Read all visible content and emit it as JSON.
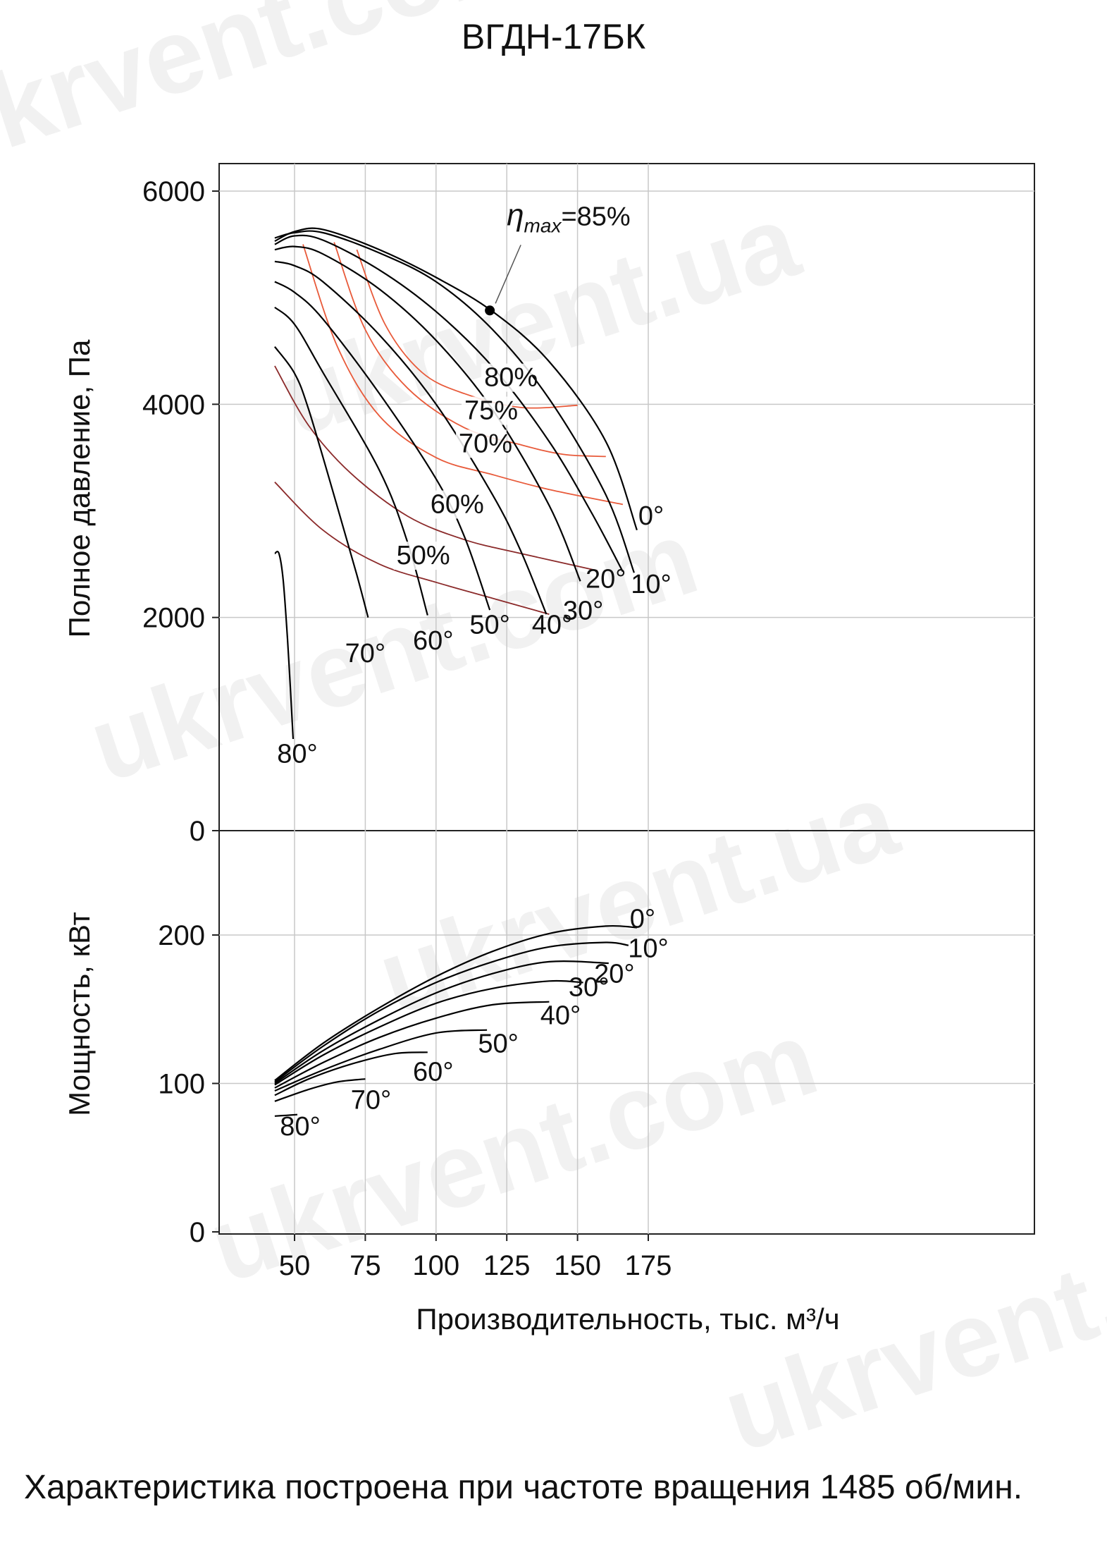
{
  "title": "ВГДН-17БК",
  "footnote": "Характеристика построена при частоте вращения 1485 об/мин.",
  "watermark": "ukrvent.com",
  "watermark_alt": "ukrvent.ua",
  "colors": {
    "curve": "#000000",
    "efficiency_low": "#8b2a2a",
    "efficiency_high": "#e85a3a",
    "grid": "#c8c8c8"
  },
  "chart_data": [
    {
      "type": "line",
      "panel": "pressure",
      "ylabel": "Полное давление, Па",
      "xlim": [
        37,
        181
      ],
      "ylim": [
        0,
        6300
      ],
      "yticks": [
        0,
        2000,
        4000,
        6000
      ],
      "ytick_labels": [
        "0",
        "2000",
        "4000",
        "6000"
      ],
      "xgrid": [
        50,
        75,
        100,
        125,
        150,
        175
      ],
      "series": [
        {
          "name": "0°",
          "label_xy": [
            176,
            2870
          ],
          "x": [
            43,
            50,
            60,
            80,
            100,
            120,
            140,
            160,
            171
          ],
          "y": [
            5530,
            5620,
            5640,
            5450,
            5190,
            4870,
            4400,
            3650,
            2820
          ]
        },
        {
          "name": "10°",
          "label_xy": [
            176,
            2230
          ],
          "x": [
            43,
            50,
            60,
            80,
            100,
            120,
            140,
            160,
            170
          ],
          "y": [
            5560,
            5610,
            5610,
            5420,
            5150,
            4700,
            4050,
            3150,
            2420
          ]
        },
        {
          "name": "20°",
          "label_xy": [
            160,
            2280
          ],
          "x": [
            43,
            50,
            60,
            80,
            100,
            120,
            140,
            155,
            166
          ],
          "y": [
            5500,
            5580,
            5540,
            5260,
            4870,
            4350,
            3650,
            2980,
            2430
          ]
        },
        {
          "name": "30°",
          "label_xy": [
            152,
            1980
          ],
          "x": [
            43,
            50,
            60,
            80,
            100,
            120,
            140,
            151
          ],
          "y": [
            5450,
            5480,
            5410,
            5080,
            4600,
            3950,
            3050,
            2340
          ]
        },
        {
          "name": "40°",
          "label_xy": [
            141,
            1850
          ],
          "x": [
            43,
            50,
            60,
            80,
            100,
            120,
            130,
            139
          ],
          "y": [
            5340,
            5300,
            5150,
            4650,
            4000,
            3150,
            2620,
            2030
          ]
        },
        {
          "name": "50°",
          "label_xy": [
            119,
            1850
          ],
          "x": [
            43,
            50,
            60,
            80,
            100,
            110,
            119
          ],
          "y": [
            5150,
            5050,
            4800,
            4100,
            3300,
            2760,
            2070
          ]
        },
        {
          "name": "60°",
          "label_xy": [
            99,
            1700
          ],
          "x": [
            43,
            50,
            60,
            80,
            90,
            97
          ],
          "y": [
            4910,
            4750,
            4300,
            3380,
            2700,
            2020
          ]
        },
        {
          "name": "70°",
          "label_xy": [
            75,
            1580
          ],
          "x": [
            43,
            50,
            55,
            65,
            72,
            76
          ],
          "y": [
            4540,
            4290,
            3950,
            3050,
            2400,
            2000
          ]
        },
        {
          "name": "80°",
          "label_xy": [
            51,
            640
          ],
          "x": [
            43,
            44.5,
            46,
            47.5,
            48.5,
            49.5
          ],
          "y": [
            2600,
            2600,
            2350,
            1800,
            1350,
            860
          ]
        }
      ],
      "efficiency_curves": [
        {
          "name": "50%",
          "label_xy": [
            86,
            2500
          ],
          "x": [
            43,
            60,
            80,
            100,
            120,
            140
          ],
          "y": [
            3270,
            2820,
            2500,
            2330,
            2180,
            2030
          ]
        },
        {
          "name": "60%",
          "label_xy": [
            98,
            2980
          ],
          "x": [
            43,
            55,
            70,
            90,
            110,
            130,
            157
          ],
          "y": [
            4360,
            3800,
            3350,
            2950,
            2730,
            2600,
            2440
          ]
        },
        {
          "name": "70%",
          "label_xy": [
            108,
            3550
          ],
          "x": [
            53,
            65,
            80,
            100,
            120,
            140,
            166
          ],
          "y": [
            5500,
            4550,
            3890,
            3500,
            3340,
            3200,
            3060
          ]
        },
        {
          "name": "75%",
          "label_xy": [
            110,
            3860
          ],
          "x": [
            64,
            75,
            90,
            110,
            130,
            145,
            160
          ],
          "y": [
            5520,
            4700,
            4150,
            3780,
            3620,
            3530,
            3510
          ]
        },
        {
          "name": "80%",
          "label_xy": [
            117,
            4170
          ],
          "x": [
            72,
            82,
            95,
            110,
            130,
            150
          ],
          "y": [
            5450,
            4750,
            4300,
            4100,
            3970,
            3990
          ]
        }
      ],
      "eta_max": {
        "label_symbol": "η",
        "label_sub": "max",
        "label": "=85%",
        "point": [
          119,
          4880
        ],
        "label_xy": [
          120,
          5680
        ]
      }
    },
    {
      "type": "line",
      "panel": "power",
      "ylabel": "Мощность, кВт",
      "xlabel": "Производительность, тыс. м³/ч",
      "xlim": [
        37,
        181
      ],
      "ylim": [
        0,
        262
      ],
      "yticks": [
        0,
        100,
        200
      ],
      "ytick_labels": [
        "0",
        "100",
        "200"
      ],
      "xticks": [
        50,
        75,
        100,
        125,
        150,
        175
      ],
      "xtick_labels": [
        "50",
        "75",
        "100",
        "125",
        "150",
        "175"
      ],
      "series": [
        {
          "name": "0°",
          "label_xy": [
            173,
            205
          ],
          "x": [
            43,
            60,
            80,
            100,
            120,
            140,
            160,
            171
          ],
          "y": [
            102,
            127,
            151,
            172,
            189,
            201,
            206,
            205
          ]
        },
        {
          "name": "10°",
          "label_xy": [
            175,
            185
          ],
          "x": [
            43,
            60,
            80,
            100,
            120,
            140,
            160,
            168
          ],
          "y": [
            101,
            125,
            149,
            168,
            182,
            192,
            195,
            193
          ]
        },
        {
          "name": "20°",
          "label_xy": [
            163,
            168
          ],
          "x": [
            43,
            60,
            80,
            100,
            120,
            140,
            161
          ],
          "y": [
            100,
            122,
            143,
            161,
            174,
            182,
            181
          ]
        },
        {
          "name": "30°",
          "label_xy": [
            154,
            159
          ],
          "x": [
            43,
            60,
            80,
            100,
            120,
            140,
            152
          ],
          "y": [
            99,
            119,
            138,
            154,
            164,
            169,
            168
          ]
        },
        {
          "name": "40°",
          "label_xy": [
            144,
            140
          ],
          "x": [
            43,
            60,
            80,
            100,
            120,
            140
          ],
          "y": [
            97,
            114,
            131,
            144,
            153,
            155
          ]
        },
        {
          "name": "50°",
          "label_xy": [
            122,
            121
          ],
          "x": [
            43,
            60,
            80,
            100,
            118
          ],
          "y": [
            95,
            109,
            123,
            134,
            136
          ]
        },
        {
          "name": "60°",
          "label_xy": [
            99,
            102
          ],
          "x": [
            43,
            55,
            70,
            85,
            97
          ],
          "y": [
            92,
            103,
            113,
            120,
            121
          ]
        },
        {
          "name": "70°",
          "label_xy": [
            77,
            83
          ],
          "x": [
            43,
            55,
            65,
            75
          ],
          "y": [
            88,
            96,
            101,
            103
          ]
        },
        {
          "name": "80°",
          "label_xy": [
            52,
            65
          ],
          "x": [
            43,
            47,
            51
          ],
          "y": [
            78,
            78.5,
            79
          ]
        }
      ]
    }
  ]
}
